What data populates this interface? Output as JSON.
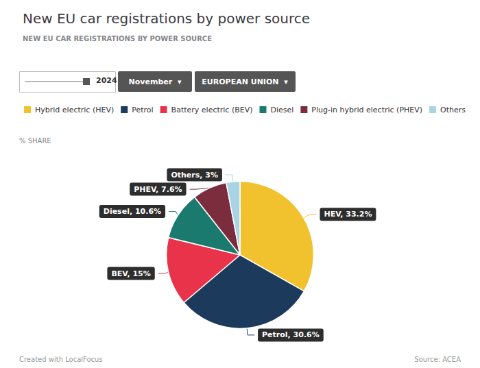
{
  "chart_data": {
    "type": "pie",
    "title": "New EU car registrations by power source",
    "subtitle": "NEW EU CAR REGISTRATIONS BY POWER SOURCE",
    "categories": [
      "Hybrid electric (HEV)",
      "Petrol",
      "Battery electric (BEV)",
      "Diesel",
      "Plug-in hybrid electric (PHEV)",
      "Others"
    ],
    "values": [
      33.2,
      30.6,
      15,
      10.6,
      7.6,
      3
    ],
    "value_labels": [
      "HEV, 33.2%",
      "Petrol, 30.6%",
      "BEV, 15%",
      "Diesel, 10.6%",
      "PHEV, 7.6%",
      "Others, 3%"
    ],
    "colors": [
      "#F2C12E",
      "#1B3A5C",
      "#E8334A",
      "#1A7A6E",
      "#7B2D3E",
      "#A8D4E6"
    ],
    "data_labels": true,
    "legend": "top-left",
    "annotations": [
      "2024",
      "November  ▾",
      "EUROPEAN UNION  ▾",
      "% SHARE",
      "Created with LocalFocus",
      "Source: ACEA"
    ]
  }
}
